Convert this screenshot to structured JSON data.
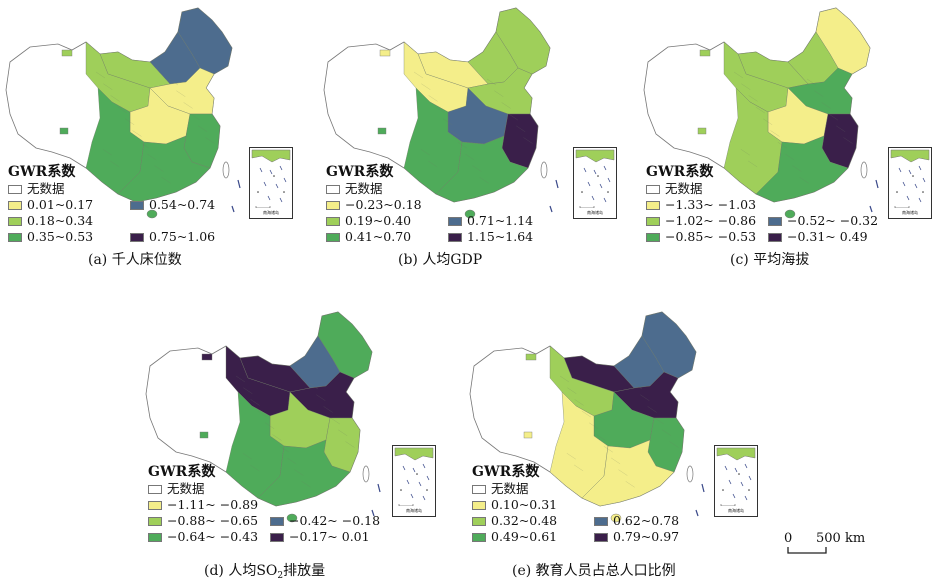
{
  "colors": {
    "no_data": "#ffffff",
    "class1": "#f4ee8a",
    "class2": "#9fcf5a",
    "class3": "#4fab5a",
    "class4": "#4d6c8e",
    "class5": "#3a1f4a",
    "border": "#777777"
  },
  "panels": [
    {
      "id": "a",
      "legend_title": "GWR系数",
      "items": [
        "无数据",
        "0.01~0.17",
        "0.18~0.34",
        "0.35~0.53",
        "0.54~0.74",
        "0.75~1.06"
      ],
      "caption": "(a) 千人床位数",
      "pattern": {
        "northeast": 4,
        "inner_mongolia_east": 4,
        "inner_mongolia_mid": 2,
        "north": 1,
        "northwest": 2,
        "southwest": 3,
        "central": 1,
        "east": 3,
        "south": 3
      }
    },
    {
      "id": "b",
      "legend_title": "GWR系数",
      "items": [
        "无数据",
        "−0.23~0.18",
        "0.19~0.40",
        "0.41~0.70",
        "0.71~1.14",
        "1.15~1.64"
      ],
      "caption": "(b) 人均GDP",
      "pattern": {
        "northeast": 2,
        "inner_mongolia_east": 2,
        "inner_mongolia_mid": 1,
        "north": 2,
        "northwest": 1,
        "southwest": 3,
        "central": 4,
        "east": 5,
        "south": 3
      }
    },
    {
      "id": "c",
      "legend_title": "GWR系数",
      "items": [
        "无数据",
        "−1.33~ −1.03",
        "−1.02~ −0.86",
        "−0.85~ −0.53",
        "−0.52~ −0.32",
        "−0.31~ 0.49"
      ],
      "caption": "(c) 平均海拔",
      "pattern": {
        "northeast": 1,
        "inner_mongolia_east": 2,
        "inner_mongolia_mid": 2,
        "north": 3,
        "northwest": 2,
        "southwest": 2,
        "central": 1,
        "east": 5,
        "south": 3
      }
    },
    {
      "id": "d",
      "legend_title": "GWR系数",
      "items": [
        "无数据",
        "−1.11~ −0.89",
        "−0.88~ −0.65",
        "−0.64~ −0.43",
        "−0.42~ −0.18",
        "−0.17~ 0.01"
      ],
      "caption_parts": {
        "pre": "(d) 人均SO",
        "sub": "2",
        "post": "排放量"
      },
      "pattern": {
        "northeast": 3,
        "inner_mongolia_east": 4,
        "inner_mongolia_mid": 5,
        "north": 5,
        "northwest": 5,
        "southwest": 3,
        "central": 2,
        "east": 2,
        "south": 3
      }
    },
    {
      "id": "e",
      "legend_title": "GWR系数",
      "items": [
        "无数据",
        "0.10~0.31",
        "0.32~0.48",
        "0.49~0.61",
        "0.62~0.78",
        "0.79~0.97"
      ],
      "caption": "(e) 教育人员占总人口比例",
      "pattern": {
        "northeast": 4,
        "inner_mongolia_east": 4,
        "inner_mongolia_mid": 5,
        "north": 5,
        "northwest": 2,
        "southwest": 1,
        "central": 3,
        "east": 3,
        "south": 1
      }
    }
  ],
  "inset_label": "南海诸岛",
  "scale_bar": {
    "zero": "0",
    "distance": "500 km"
  }
}
